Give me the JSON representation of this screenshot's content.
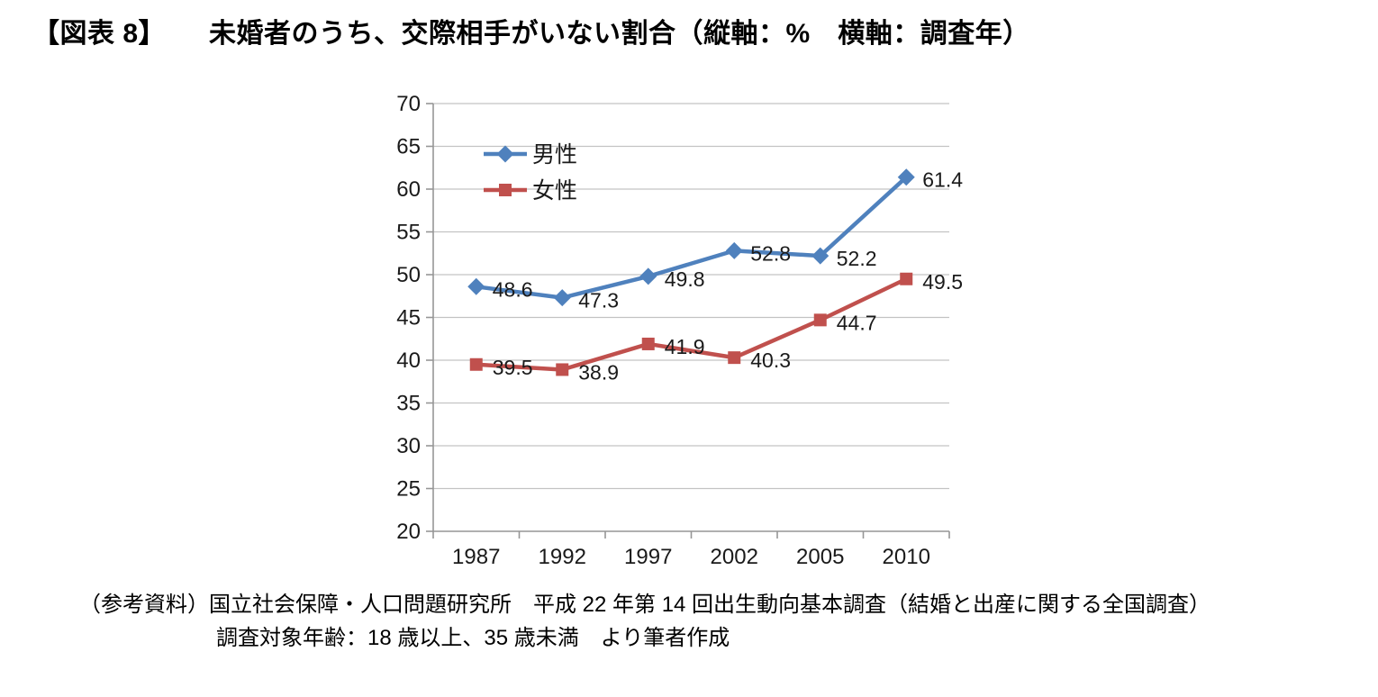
{
  "header": {
    "prefix": "【図表 8】",
    "title": "未婚者のうち、交際相手がいない割合（縦軸：%　横軸：調査年）"
  },
  "chart_data": {
    "type": "line",
    "categories": [
      "1987",
      "1992",
      "1997",
      "2002",
      "2005",
      "2010"
    ],
    "series": [
      {
        "name": "男性",
        "color": "#4F81BD",
        "marker": "diamond",
        "values": [
          48.6,
          47.3,
          49.8,
          52.8,
          52.2,
          61.4
        ]
      },
      {
        "name": "女性",
        "color": "#C0504D",
        "marker": "square",
        "values": [
          39.5,
          38.9,
          41.9,
          40.3,
          44.7,
          49.5
        ]
      }
    ],
    "ylim": [
      20,
      70
    ],
    "ytick_step": 5,
    "yticks": [
      20,
      25,
      30,
      35,
      40,
      45,
      50,
      55,
      60,
      65,
      70
    ],
    "grid": true,
    "data_labels": true,
    "legend_position": "inside-top-left",
    "gridline_color": "#C3C3C3",
    "axis_color": "#969696",
    "tick_label_color": "#1a1a1a",
    "data_label_color": "#000000"
  },
  "footer": {
    "line1": "（参考資料）国立社会保障・人口問題研究所　平成 22 年第 14 回出生動向基本調査（結婚と出産に関する全国調査）",
    "line2": "調査対象年齢：18 歳以上、35 歳未満　より筆者作成"
  }
}
